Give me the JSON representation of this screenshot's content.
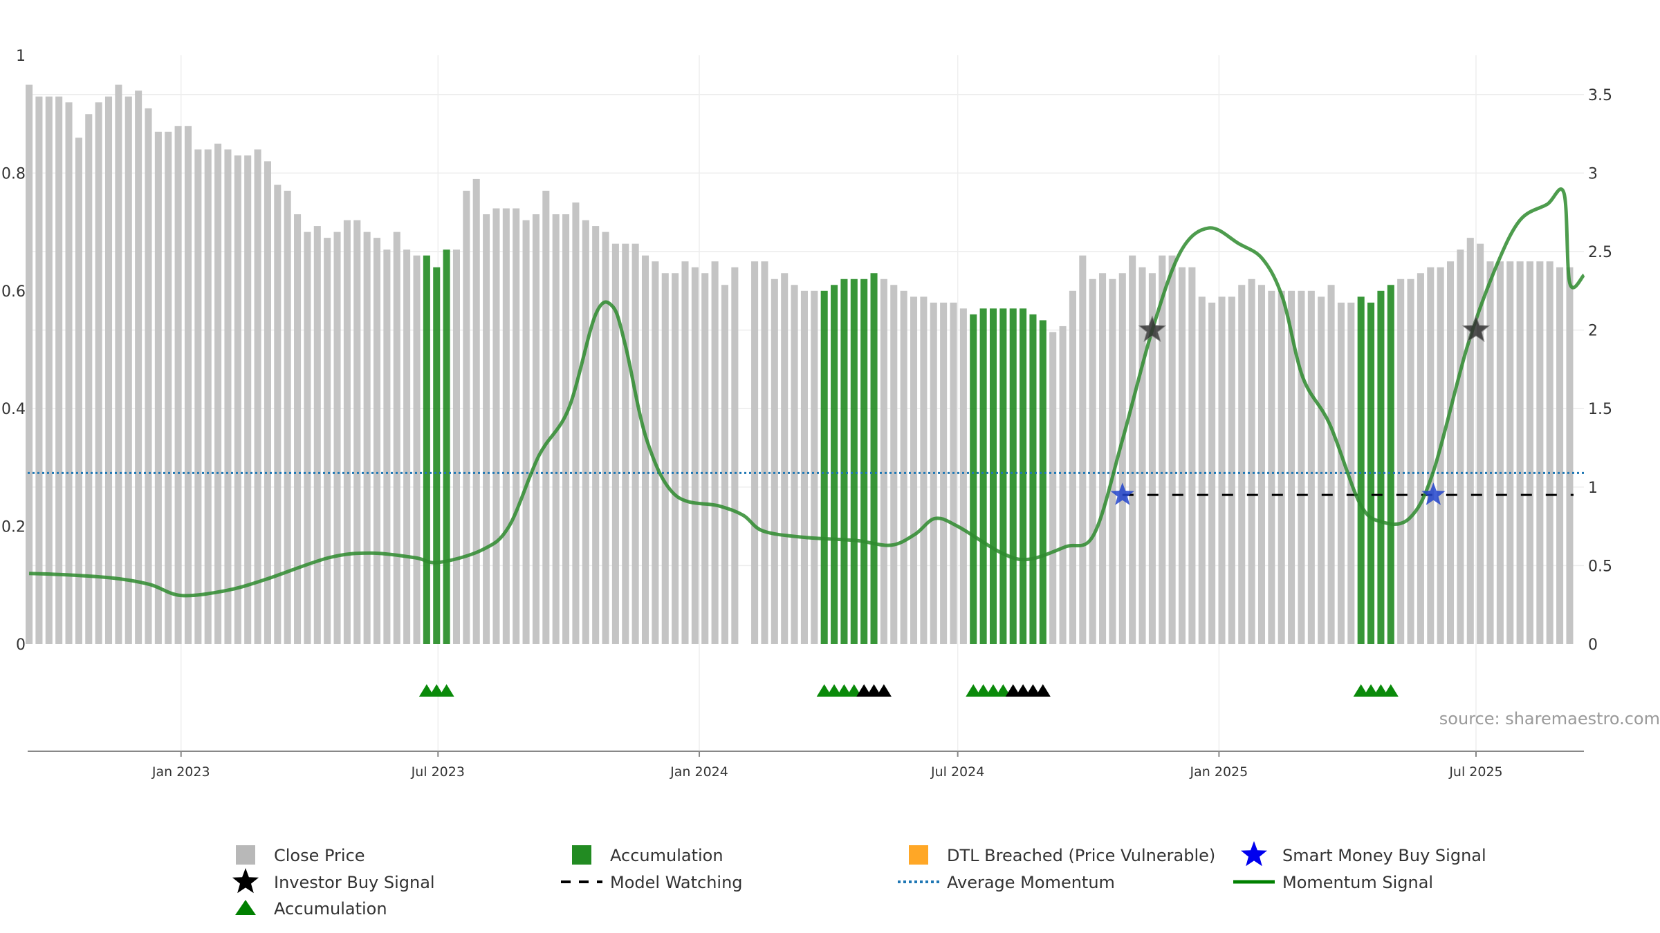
{
  "chart_data": {
    "type": "bar",
    "source_note": "source: sharemaestro.com",
    "left_axis": {
      "ylim": [
        0,
        1
      ],
      "ticks": [
        "0",
        "0.2",
        "0.4",
        "0.6",
        "0.8",
        "1"
      ]
    },
    "right_axis": {
      "ylim": [
        0,
        3.75
      ],
      "ticks": [
        "0",
        "0.5",
        "1",
        "1.5",
        "2",
        "2.5",
        "3",
        "3.5"
      ]
    },
    "x_ticks": [
      "Jan 2023",
      "Jul 2023",
      "Jan 2024",
      "Jul 2024",
      "Jan 2025",
      "Jul 2025"
    ],
    "x_tick_dates": [
      "2023-01-01",
      "2023-07-01",
      "2024-01-01",
      "2024-07-01",
      "2025-01-01",
      "2025-07-01"
    ],
    "x_range": [
      "2022-09-15",
      "2025-09-15"
    ],
    "close_price": {
      "start_date": "2022-09-16",
      "interval_days": 7,
      "values": [
        0.95,
        0.93,
        0.93,
        0.93,
        0.92,
        0.86,
        0.9,
        0.92,
        0.93,
        0.95,
        0.93,
        0.94,
        0.91,
        0.87,
        0.87,
        0.88,
        0.88,
        0.84,
        0.84,
        0.85,
        0.84,
        0.83,
        0.83,
        0.84,
        0.82,
        0.78,
        0.77,
        0.73,
        0.7,
        0.71,
        0.69,
        0.7,
        0.72,
        0.72,
        0.7,
        0.69,
        0.67,
        0.7,
        0.67,
        0.66,
        0.66,
        0.64,
        0.67,
        0.67,
        0.77,
        0.79,
        0.73,
        0.74,
        0.74,
        0.74,
        0.72,
        0.73,
        0.77,
        0.73,
        0.73,
        0.75,
        0.72,
        0.71,
        0.7,
        0.68,
        0.68,
        0.68,
        0.66,
        0.65,
        0.63,
        0.63,
        0.65,
        0.64,
        0.63,
        0.65,
        0.61,
        0.64,
        0.0,
        0.65,
        0.65,
        0.62,
        0.63,
        0.61,
        0.6,
        0.6,
        0.6,
        0.61,
        0.62,
        0.62,
        0.62,
        0.63,
        0.62,
        0.61,
        0.6,
        0.59,
        0.59,
        0.58,
        0.58,
        0.58,
        0.57,
        0.56,
        0.57,
        0.57,
        0.57,
        0.57,
        0.57,
        0.56,
        0.55,
        0.53,
        0.54,
        0.6,
        0.66,
        0.62,
        0.63,
        0.62,
        0.63,
        0.66,
        0.64,
        0.63,
        0.66,
        0.66,
        0.64,
        0.64,
        0.59,
        0.58,
        0.59,
        0.59,
        0.61,
        0.62,
        0.61,
        0.6,
        0.6,
        0.6,
        0.6,
        0.6,
        0.59,
        0.61,
        0.58,
        0.58,
        0.59,
        0.58,
        0.6,
        0.61,
        0.62,
        0.62,
        0.63,
        0.64,
        0.64,
        0.65,
        0.67,
        0.69,
        0.68,
        0.65,
        0.65,
        0.65,
        0.65,
        0.65,
        0.65,
        0.65,
        0.64,
        0.64
      ],
      "accumulation_ranges": [
        [
          40,
          42
        ],
        [
          80,
          85
        ],
        [
          95,
          102
        ],
        [
          134,
          137
        ]
      ]
    },
    "accumulation_triangles": {
      "green": [
        [
          40,
          42
        ],
        [
          80,
          83
        ],
        [
          95,
          98
        ],
        [
          134,
          137
        ]
      ],
      "black": [
        [
          84,
          86
        ],
        [
          99,
          102
        ]
      ]
    },
    "momentum": {
      "points": [
        [
          "2022-09-16",
          0.45
        ],
        [
          "2022-10-15",
          0.44
        ],
        [
          "2022-11-15",
          0.42
        ],
        [
          "2022-12-10",
          0.38
        ],
        [
          "2023-01-01",
          0.31
        ],
        [
          "2023-02-01",
          0.34
        ],
        [
          "2023-03-01",
          0.41
        ],
        [
          "2023-04-15",
          0.55
        ],
        [
          "2023-05-15",
          0.58
        ],
        [
          "2023-06-15",
          0.55
        ],
        [
          "2023-07-01",
          0.52
        ],
        [
          "2023-08-01",
          0.6
        ],
        [
          "2023-08-20",
          0.75
        ],
        [
          "2023-09-10",
          1.2
        ],
        [
          "2023-10-01",
          1.5
        ],
        [
          "2023-10-20",
          2.1
        ],
        [
          "2023-11-01",
          2.15
        ],
        [
          "2023-11-10",
          1.9
        ],
        [
          "2023-11-25",
          1.3
        ],
        [
          "2023-12-15",
          0.95
        ],
        [
          "2024-01-15",
          0.88
        ],
        [
          "2024-02-01",
          0.82
        ],
        [
          "2024-02-15",
          0.72
        ],
        [
          "2024-03-15",
          0.68
        ],
        [
          "2024-04-20",
          0.66
        ],
        [
          "2024-05-15",
          0.63
        ],
        [
          "2024-06-01",
          0.7
        ],
        [
          "2024-06-15",
          0.8
        ],
        [
          "2024-07-01",
          0.75
        ],
        [
          "2024-08-01",
          0.58
        ],
        [
          "2024-08-20",
          0.54
        ],
        [
          "2024-09-15",
          0.62
        ],
        [
          "2024-10-05",
          0.7
        ],
        [
          "2024-10-25",
          1.3
        ],
        [
          "2024-11-15",
          2.0
        ],
        [
          "2024-12-05",
          2.5
        ],
        [
          "2024-12-25",
          2.65
        ],
        [
          "2025-01-15",
          2.55
        ],
        [
          "2025-02-01",
          2.45
        ],
        [
          "2025-02-15",
          2.2
        ],
        [
          "2025-03-01",
          1.7
        ],
        [
          "2025-03-20",
          1.4
        ],
        [
          "2025-04-10",
          0.9
        ],
        [
          "2025-04-25",
          0.78
        ],
        [
          "2025-05-15",
          0.8
        ],
        [
          "2025-06-01",
          1.1
        ],
        [
          "2025-06-25",
          1.9
        ],
        [
          "2025-07-15",
          2.4
        ],
        [
          "2025-08-01",
          2.7
        ],
        [
          "2025-08-20",
          2.8
        ],
        [
          "2025-09-01",
          2.87
        ],
        [
          "2025-09-05",
          2.3
        ],
        [
          "2025-09-15",
          2.35
        ]
      ],
      "average": 1.09,
      "model_watching_level": 0.95,
      "model_watching_start": "2024-10-25"
    },
    "investor_buy_signals": [
      [
        "2024-11-15",
        2.0
      ],
      [
        "2025-07-01",
        2.0
      ]
    ],
    "smart_money_buy_signals": [
      [
        "2024-10-25",
        0.95
      ],
      [
        "2025-06-01",
        0.95
      ]
    ],
    "legend": [
      {
        "label": "Close Price",
        "marker": "grey-square",
        "color": "#b8b8b8"
      },
      {
        "label": "Accumulation",
        "marker": "green-square",
        "color": "#228b22"
      },
      {
        "label": "DTL Breached (Price Vulnerable)",
        "marker": "orange-square",
        "color": "#ffa726"
      },
      {
        "label": "Smart Money Buy Signal",
        "marker": "blue-star",
        "color": "#0000ee"
      },
      {
        "label": "Investor Buy Signal",
        "marker": "black-star",
        "color": "#000000"
      },
      {
        "label": "Model Watching",
        "marker": "black-dash",
        "color": "#000000"
      },
      {
        "label": "Average Momentum",
        "marker": "blue-dotted",
        "color": "#1f77b4"
      },
      {
        "label": "Momentum Signal",
        "marker": "green-line",
        "color": "#008000"
      },
      {
        "label": "Accumulation",
        "marker": "green-triangle",
        "color": "#008000"
      }
    ]
  }
}
